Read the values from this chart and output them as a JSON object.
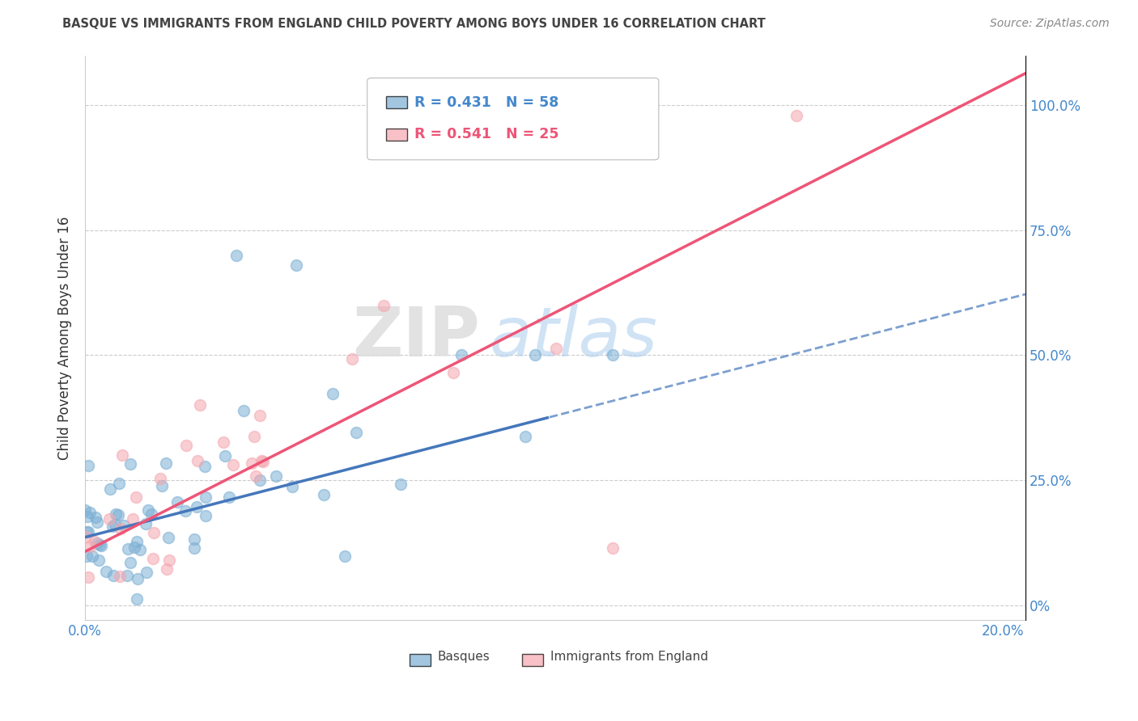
{
  "title": "BASQUE VS IMMIGRANTS FROM ENGLAND CHILD POVERTY AMONG BOYS UNDER 16 CORRELATION CHART",
  "source": "Source: ZipAtlas.com",
  "ylabel": "Child Poverty Among Boys Under 16",
  "legend_blue_r": "R = 0.431",
  "legend_blue_n": "N = 58",
  "legend_pink_r": "R = 0.541",
  "legend_pink_n": "N = 25",
  "blue_color": "#7BAFD4",
  "pink_color": "#F4A7B0",
  "blue_line_color": "#4477BB",
  "pink_line_color": "#EE5577",
  "background_color": "#FFFFFF",
  "grid_color": "#CCCCCC",
  "watermark_zip_color": "#DDDDDD",
  "watermark_atlas_color": "#AACCEE",
  "title_color": "#444444",
  "source_color": "#888888",
  "axis_label_color": "#333333",
  "tick_color": "#4488CC",
  "blue_slope": 3.5,
  "blue_intercept": 0.12,
  "pink_slope": 4.8,
  "pink_intercept": 0.12,
  "xlim": [
    0.0,
    0.205
  ],
  "ylim": [
    -0.03,
    1.1
  ],
  "xtick_positions": [
    0.0,
    0.04,
    0.08,
    0.12,
    0.16,
    0.2
  ],
  "ytick_positions": [
    0.0,
    0.25,
    0.5,
    0.75,
    1.0
  ],
  "ytick_labels": [
    "0%",
    "25.0%",
    "50.0%",
    "75.0%",
    "100.0%"
  ],
  "basque_seed": 12,
  "immigrant_seed": 99,
  "n_basque": 58,
  "n_immigrant": 25
}
